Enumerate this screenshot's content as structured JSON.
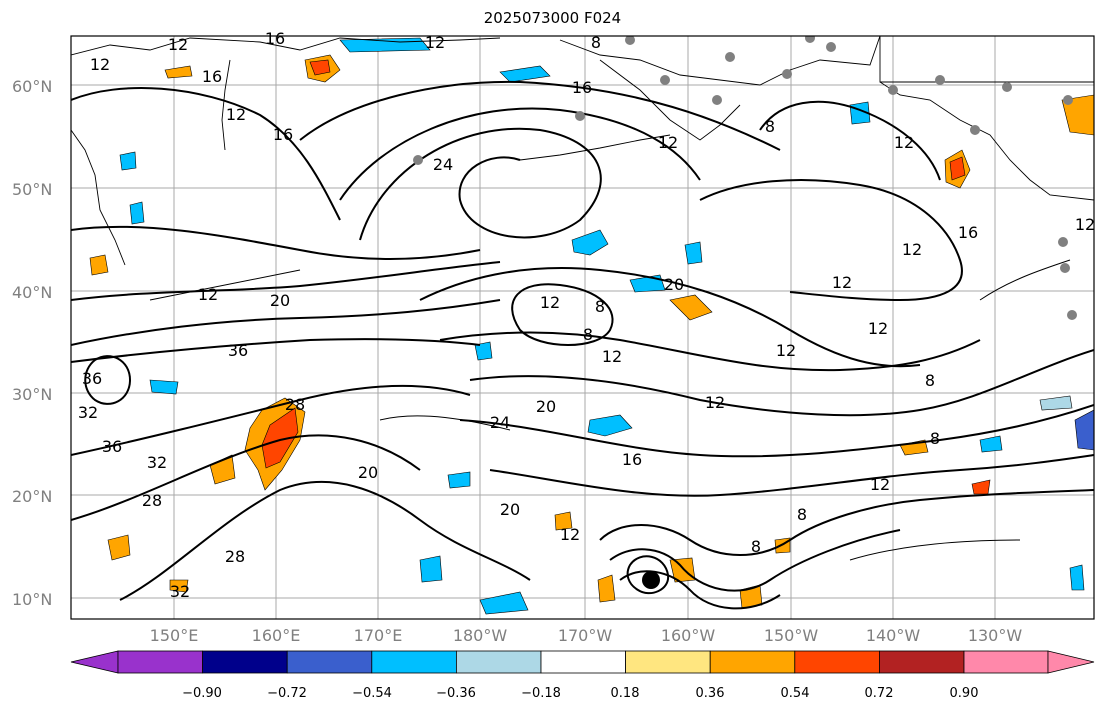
{
  "title": "2025073000 F024",
  "lat_labels": [
    "60°N",
    "50°N",
    "40°N",
    "30°N",
    "20°N",
    "10°N"
  ],
  "lon_labels": [
    "150°E",
    "160°E",
    "170°E",
    "180°W",
    "170°W",
    "160°W",
    "150°W",
    "140°W",
    "130°W"
  ],
  "colorbar": {
    "tick_labels": [
      "−0.90",
      "−0.72",
      "−0.54",
      "−0.36",
      "−0.18",
      "0.18",
      "0.36",
      "0.54",
      "0.72",
      "0.90"
    ],
    "colors": [
      "#9932cc",
      "#00008b",
      "#3a5fcd",
      "#00bfff",
      "#add8e6",
      "#ffffff",
      "#ffe680",
      "#ffa500",
      "#ff4500",
      "#b22222",
      "#ff88aa"
    ]
  },
  "contour_labels": [
    "12",
    "16",
    "12",
    "16",
    "12",
    "16",
    "12",
    "8",
    "16",
    "24",
    "12",
    "12",
    "20",
    "36",
    "36",
    "32",
    "36",
    "28",
    "32",
    "28",
    "28",
    "32",
    "20",
    "24",
    "20",
    "20",
    "16",
    "12",
    "12",
    "8",
    "8",
    "12",
    "20",
    "12",
    "12",
    "12",
    "16",
    "12",
    "8",
    "8",
    "8",
    "12",
    "12",
    "8",
    "8",
    "12",
    "12"
  ],
  "colors": {
    "contour": "#000000",
    "coast": "#000000",
    "grid": "#a0a0a0",
    "station": "#808080",
    "storm": "#000000"
  }
}
